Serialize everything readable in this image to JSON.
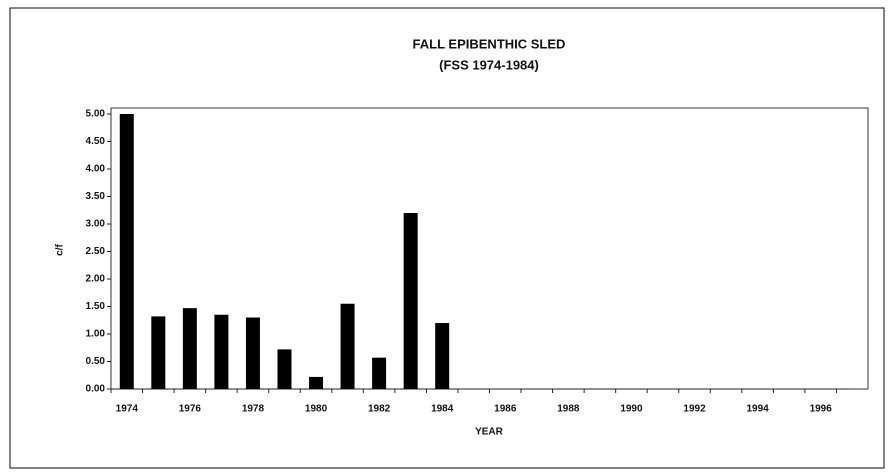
{
  "chart_data": {
    "type": "bar",
    "title": "FALL EPIBENTHIC SLED",
    "subtitle": "(FSS 1974-1984)",
    "x_label": "YEAR",
    "y_label": "c/f",
    "categories": [
      "1974",
      null,
      "1976",
      null,
      "1978",
      null,
      "1980",
      null,
      "1982",
      null,
      "1984",
      null,
      "1986",
      null,
      "1988",
      null,
      "1990",
      null,
      "1992",
      null,
      "1994",
      null,
      "1996",
      null
    ],
    "values": [
      5.0,
      1.32,
      1.47,
      1.35,
      1.3,
      0.72,
      0.22,
      1.55,
      0.57,
      3.2,
      1.2,
      null,
      null,
      null,
      null,
      null,
      null,
      null,
      null,
      null,
      null,
      null,
      null,
      null
    ],
    "color": "#000000",
    "ylim": [
      0,
      5
    ],
    "yticks": [
      {
        "value": 0,
        "label": "0.00"
      },
      {
        "value": 0.5,
        "label": "0.50"
      },
      {
        "value": 1,
        "label": "1.00"
      },
      {
        "value": 1.5,
        "label": "1.50"
      },
      {
        "value": 2,
        "label": "2.00"
      },
      {
        "value": 2.5,
        "label": "2.50"
      },
      {
        "value": 3,
        "label": "3.00"
      },
      {
        "value": 3.5,
        "label": "3.50"
      },
      {
        "value": 4,
        "label": "4.00"
      },
      {
        "value": 4.5,
        "label": "4.50"
      },
      {
        "value": 5,
        "label": "5.00"
      }
    ],
    "grid": false
  }
}
